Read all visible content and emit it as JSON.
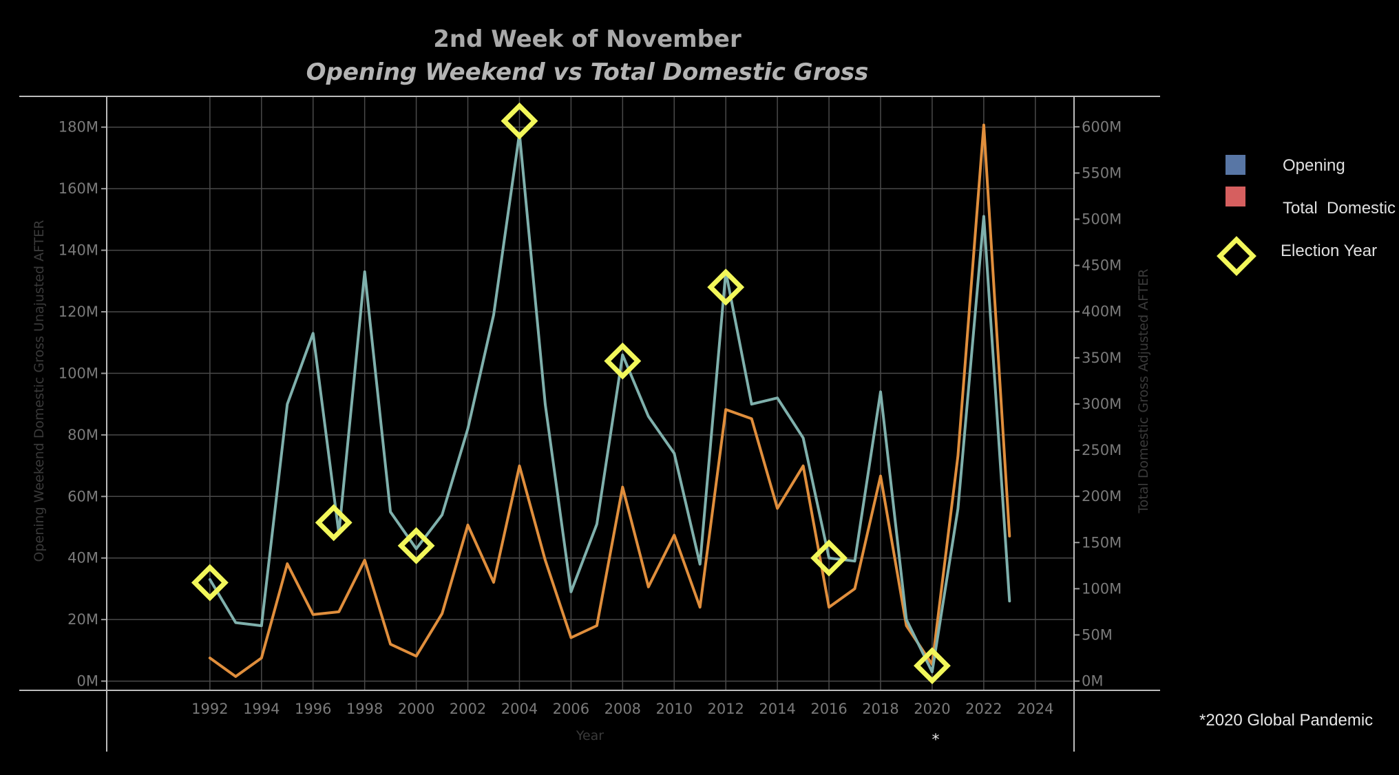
{
  "chart_data": {
    "type": "line",
    "title": "2nd Week of November",
    "subtitle": "Opening Weekend vs Total Domestic Gross",
    "xlabel": "Year",
    "ylabel_left": "Opening Weekend Domestic Gross Unajusted AFTER",
    "ylabel_right": "Total Domestic Gross Adjusted AFTER",
    "x_ticks": [
      "1992",
      "1994",
      "1996",
      "1998",
      "2000",
      "2002",
      "2004",
      "2006",
      "2008",
      "2010",
      "2012",
      "2014",
      "2016",
      "2018",
      "2020",
      "2022",
      "2024"
    ],
    "y_left_ticks": [
      "0M",
      "20M",
      "40M",
      "60M",
      "80M",
      "100M",
      "120M",
      "140M",
      "160M",
      "180M"
    ],
    "y_right_ticks": [
      "0M",
      "50M",
      "100M",
      "150M",
      "200M",
      "250M",
      "300M",
      "350M",
      "400M",
      "450M",
      "500M",
      "550M",
      "600M"
    ],
    "xlim": [
      1988,
      2025.5
    ],
    "ylim_left": [
      -3,
      190
    ],
    "ylim_right": [
      -10,
      633
    ],
    "grid": true,
    "series": [
      {
        "name": "Opening",
        "axis": "left",
        "color": "#7fb0ac",
        "x": [
          1992,
          1993,
          1994,
          1995,
          1996,
          1997,
          1998,
          1999,
          2000,
          2001,
          2002,
          2003,
          2004,
          2005,
          2006,
          2007,
          2008,
          2009,
          2010,
          2011,
          2012,
          2013,
          2014,
          2015,
          2016,
          2017,
          2018,
          2019,
          2020,
          2021,
          2022,
          2023
        ],
        "values": [
          33,
          19,
          18,
          90,
          113,
          48,
          133,
          55,
          43,
          54,
          82,
          119,
          178,
          90,
          29,
          51,
          106,
          86,
          74,
          38,
          133,
          90,
          92,
          79,
          40,
          39,
          94,
          20,
          3,
          56,
          151,
          26
        ]
      },
      {
        "name": "Total Domestic",
        "axis": "right",
        "color": "#e08e3c",
        "x": [
          1992,
          1993,
          1994,
          1995,
          1996,
          1997,
          1998,
          1999,
          2000,
          2001,
          2002,
          2003,
          2004,
          2005,
          2006,
          2007,
          2008,
          2009,
          2010,
          2011,
          2012,
          2013,
          2014,
          2015,
          2016,
          2017,
          2018,
          2019,
          2020,
          2021,
          2022,
          2023
        ],
        "values": [
          25,
          5,
          25,
          127,
          72,
          75,
          131,
          40,
          27,
          73,
          169,
          107,
          233,
          131,
          47,
          60,
          210,
          102,
          158,
          80,
          294,
          284,
          187,
          233,
          80,
          100,
          222,
          60,
          18,
          244,
          602,
          157
        ]
      }
    ],
    "election_year_markers": {
      "color": "#f2f75a",
      "axis": "left",
      "x": [
        1992,
        1996.8,
        2000,
        2004,
        2008,
        2012,
        2016,
        2020
      ],
      "values": [
        32,
        51.5,
        44,
        182,
        104,
        128,
        40,
        5
      ]
    },
    "legend": {
      "position": "right",
      "items": [
        {
          "label": "Opening",
          "swatch": "square",
          "color": "#5876a5"
        },
        {
          "label": "Total  Domestic",
          "swatch": "square",
          "color": "#d65f5f"
        },
        {
          "label": "Election Year",
          "swatch": "diamond",
          "color": "#f2f75a"
        }
      ]
    },
    "annotations": {
      "pandemic_note": "*2020 Global Pandemic",
      "star_marker": "*",
      "star_year": 2020
    }
  }
}
